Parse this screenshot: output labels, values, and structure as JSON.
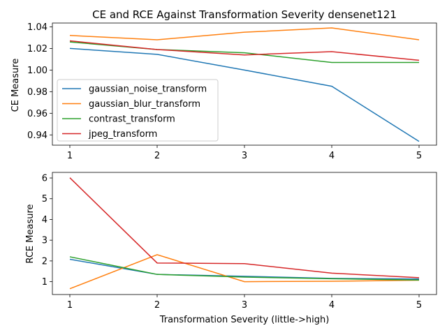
{
  "chart_data": [
    {
      "type": "line",
      "title": "CE and RCE Against Transformation Severity densenet121",
      "xlabel": "",
      "ylabel": "CE Measure",
      "x": [
        1,
        2,
        3,
        4,
        5
      ],
      "xticks": [
        "1",
        "2",
        "3",
        "4",
        "5"
      ],
      "yticks": [
        "0.94",
        "0.96",
        "0.98",
        "1.00",
        "1.02",
        "1.04"
      ],
      "ylim": [
        0.9305,
        1.0435
      ],
      "legend_position": "lower-left",
      "series": [
        {
          "name": "gaussian_noise_transform",
          "color": "#1f77b4",
          "values": [
            1.02,
            1.0145,
            1.0,
            0.985,
            0.934
          ]
        },
        {
          "name": "gaussian_blur_transform",
          "color": "#ff7f0e",
          "values": [
            1.032,
            1.028,
            1.035,
            1.039,
            1.028
          ]
        },
        {
          "name": "contrast_transform",
          "color": "#2ca02c",
          "values": [
            1.026,
            1.019,
            1.016,
            1.007,
            1.007
          ]
        },
        {
          "name": "jpeg_transform",
          "color": "#d62728",
          "values": [
            1.027,
            1.019,
            1.014,
            1.017,
            1.009
          ]
        }
      ]
    },
    {
      "type": "line",
      "title": "",
      "xlabel": "Transformation Severity (little->high)",
      "ylabel": "RCE Measure",
      "x": [
        1,
        2,
        3,
        4,
        5
      ],
      "xticks": [
        "1",
        "2",
        "3",
        "4",
        "5"
      ],
      "yticks": [
        "1",
        "2",
        "3",
        "4",
        "5",
        "6"
      ],
      "ylim": [
        0.38,
        6.27
      ],
      "series": [
        {
          "name": "gaussian_noise_transform",
          "color": "#1f77b4",
          "values": [
            2.08,
            1.35,
            1.26,
            1.16,
            1.13
          ]
        },
        {
          "name": "gaussian_blur_transform",
          "color": "#ff7f0e",
          "values": [
            0.66,
            2.3,
            1.0,
            1.02,
            1.07
          ]
        },
        {
          "name": "contrast_transform",
          "color": "#2ca02c",
          "values": [
            2.2,
            1.35,
            1.22,
            1.14,
            1.08
          ]
        },
        {
          "name": "jpeg_transform",
          "color": "#d62728",
          "values": [
            6.01,
            1.9,
            1.87,
            1.41,
            1.19
          ]
        }
      ]
    }
  ]
}
